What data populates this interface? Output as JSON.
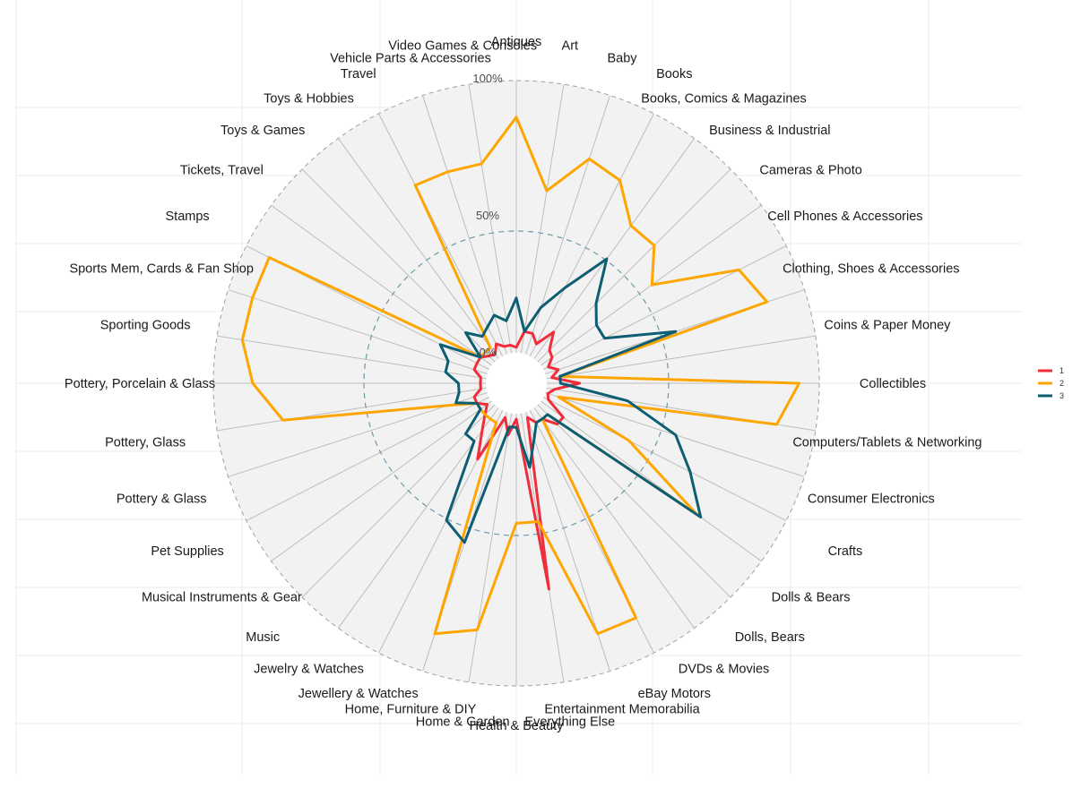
{
  "chart_data": {
    "type": "radar",
    "title": "",
    "categories": [
      "Antiques",
      "Art",
      "Baby",
      "Books",
      "Books, Comics & Magazines",
      "Business & Industrial",
      "Cameras & Photo",
      "Cell Phones & Accessories",
      "Clothing, Shoes & Accessories",
      "Coins & Paper Money",
      "Collectibles",
      "Computers/Tablets & Networking",
      "Consumer Electronics",
      "Crafts",
      "Dolls & Bears",
      "Dolls, Bears",
      "DVDs & Movies",
      "eBay Motors",
      "Entertainment Memorabilia",
      "Everything Else",
      "Health & Beauty",
      "Home & Garden",
      "Home, Furniture & DIY",
      "Jewellery & Watches",
      "Jewelry & Watches",
      "Music",
      "Musical Instruments & Gear",
      "Pet Supplies",
      "Pottery & Glass",
      "Pottery, Glass",
      "Pottery, Porcelain & Glass",
      "Sporting Goods",
      "Sports Mem, Cards & Fan Shop",
      "Stamps",
      "Tickets, Travel",
      "Toys & Games",
      "Toys & Hobbies",
      "Travel",
      "Vehicle Parts & Accessories",
      "Video Games & Consoles"
    ],
    "radial_ticks": [
      {
        "value": 0,
        "label": "0%"
      },
      {
        "value": 0.5,
        "label": "50%"
      },
      {
        "value": 1.0,
        "label": "100%"
      }
    ],
    "ylim": [
      0,
      1.1
    ],
    "grid": true,
    "legend": {
      "position": "right",
      "entries": [
        "1",
        "2",
        "3"
      ]
    },
    "series": [
      {
        "name": "1",
        "color": "#F02D3A",
        "values": [
          0.02,
          0.08,
          0.08,
          0.05,
          0.12,
          0.06,
          0.05,
          0.02,
          0.05,
          0.02,
          0.12,
          0.03,
          0.01,
          0.02,
          0.1,
          0.1,
          0.05,
          0.05,
          0.02,
          0.65,
          0.02,
          0.08,
          0.02,
          0.2,
          0.1,
          0.05,
          0.02,
          0.05,
          0.05,
          0.02,
          0.02,
          0.02,
          0.05,
          0.05,
          0.05,
          0.03,
          0.02,
          0.05,
          0.03,
          0.03
        ]
      },
      {
        "name": "2",
        "color": "#FFA500",
        "values": [
          0.86,
          0.6,
          0.75,
          0.72,
          0.6,
          0.6,
          0.5,
          0.8,
          0.85,
          0.05,
          0.92,
          0.85,
          0.05,
          0.35,
          0.7,
          0.05,
          0.05,
          0.85,
          0.85,
          0.4,
          0.4,
          0.8,
          0.85,
          0.05,
          0.05,
          0.05,
          0.05,
          0.05,
          0.15,
          0.75,
          0.85,
          0.9,
          0.9,
          0.9,
          0.05,
          0.05,
          0.05,
          0.7,
          0.7,
          0.7
        ]
      },
      {
        "name": "3",
        "color": "#0E5E73",
        "values": [
          0.2,
          0.08,
          0.18,
          0.28,
          0.45,
          0.3,
          0.25,
          0.25,
          0.5,
          0.05,
          0.05,
          0.3,
          0.5,
          0.6,
          0.72,
          0.05,
          0.05,
          0.05,
          0.1,
          0.2,
          0.05,
          0.05,
          0.5,
          0.45,
          0.15,
          0.15,
          0.05,
          0.05,
          0.12,
          0.1,
          0.1,
          0.15,
          0.15,
          0.2,
          0.05,
          0.15,
          0.1,
          0.12,
          0.15,
          0.12
        ]
      }
    ]
  }
}
